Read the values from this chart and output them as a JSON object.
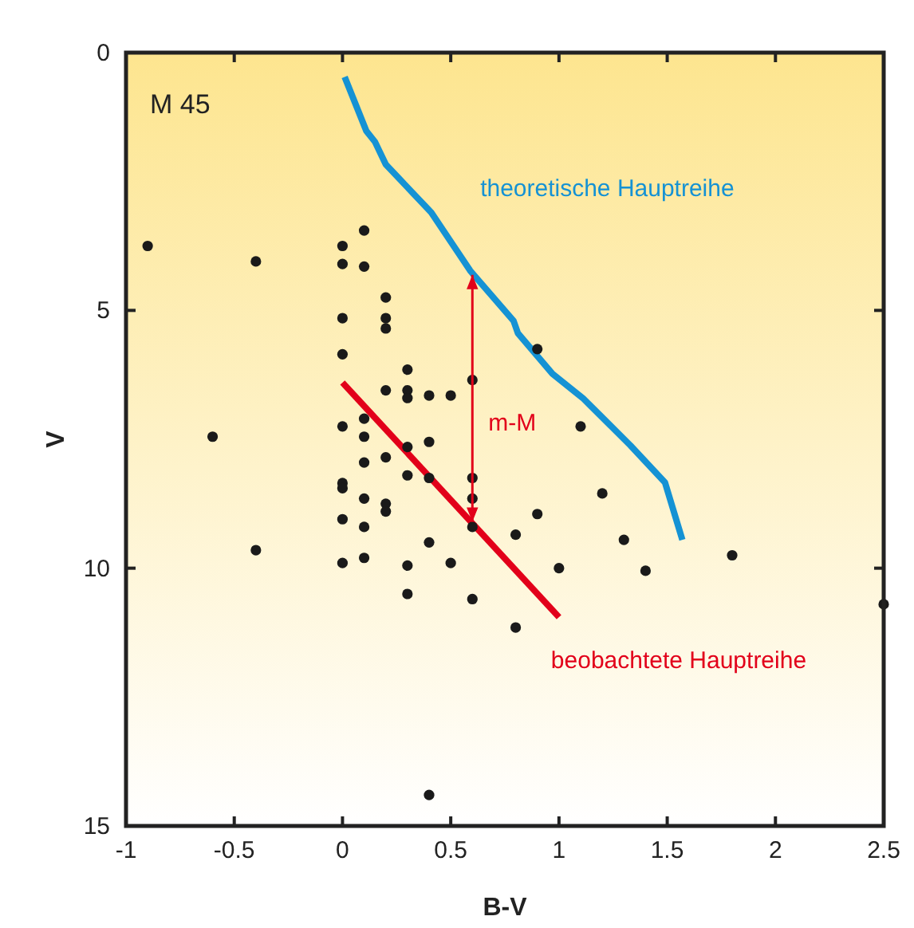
{
  "chart_data": {
    "type": "scatter",
    "xlabel": "B-V",
    "ylabel": "V",
    "xlim": [
      -1,
      2.5
    ],
    "ylim": [
      15,
      0
    ],
    "xticks": [
      -1,
      -0.5,
      0,
      0.5,
      1,
      1.5,
      2,
      2.5
    ],
    "yticks": [
      0,
      5,
      10,
      15
    ],
    "grid": false,
    "annotations": [
      "M 45",
      "m-M"
    ],
    "series": [
      {
        "color": "#1a1a1a",
        "marker": "circle",
        "x": [
          -0.9,
          -0.4,
          0,
          0,
          0.1,
          0.1,
          0.2,
          0.2,
          0.2,
          0,
          0,
          0.3,
          0.2,
          0.3,
          0.3,
          0.4,
          0.5,
          0.6,
          0,
          0.1,
          0.1,
          -0.6,
          0.1,
          0.2,
          0.3,
          0.4,
          0.3,
          0.4,
          0.6,
          0.6,
          0.6,
          0,
          0,
          0.1,
          0.2,
          0.2,
          0,
          0.1,
          0.4,
          -0.4,
          0,
          0.1,
          0.3,
          0.5,
          0.3,
          0.6,
          0.4,
          0.9,
          1.1,
          1.2,
          0.9,
          0.8,
          1.3,
          1.0,
          1.4,
          1.8,
          2.5,
          0.8
        ],
        "values": [
          3.75,
          4.05,
          3.75,
          4.1,
          3.45,
          4.15,
          4.75,
          5.15,
          5.35,
          5.15,
          5.85,
          6.15,
          6.55,
          6.55,
          6.7,
          6.65,
          6.65,
          6.35,
          7.25,
          7.1,
          7.45,
          7.45,
          7.95,
          7.85,
          7.65,
          7.55,
          8.2,
          8.25,
          8.25,
          8.65,
          9.2,
          8.35,
          8.45,
          8.65,
          8.75,
          8.9,
          9.05,
          9.2,
          9.5,
          9.65,
          9.9,
          9.8,
          9.95,
          9.9,
          10.5,
          10.6,
          14.4,
          5.75,
          7.25,
          8.55,
          8.95,
          9.35,
          9.45,
          10.0,
          10.05,
          9.75,
          10.7,
          11.15
        ]
      },
      {
        "type": "line",
        "name": "theoretische Hauptreihe",
        "color": "#1592d4",
        "line_style": "solid",
        "marker": "none",
        "x": [
          0.01,
          0.11,
          0.15,
          0.2,
          0.41,
          0.59,
          0.79,
          0.81,
          0.97,
          1.11,
          1.33,
          1.49,
          1.57
        ],
        "values": [
          0.47,
          1.52,
          1.73,
          2.17,
          3.1,
          4.23,
          5.2,
          5.44,
          6.23,
          6.7,
          7.62,
          8.34,
          9.45
        ]
      },
      {
        "type": "line",
        "name": "beobachtete Hauptreihe",
        "color": "#e2001a",
        "line_style": "solid",
        "marker": "none",
        "x": [
          0,
          1.0
        ],
        "values": [
          6.4,
          10.95
        ]
      }
    ]
  }
}
